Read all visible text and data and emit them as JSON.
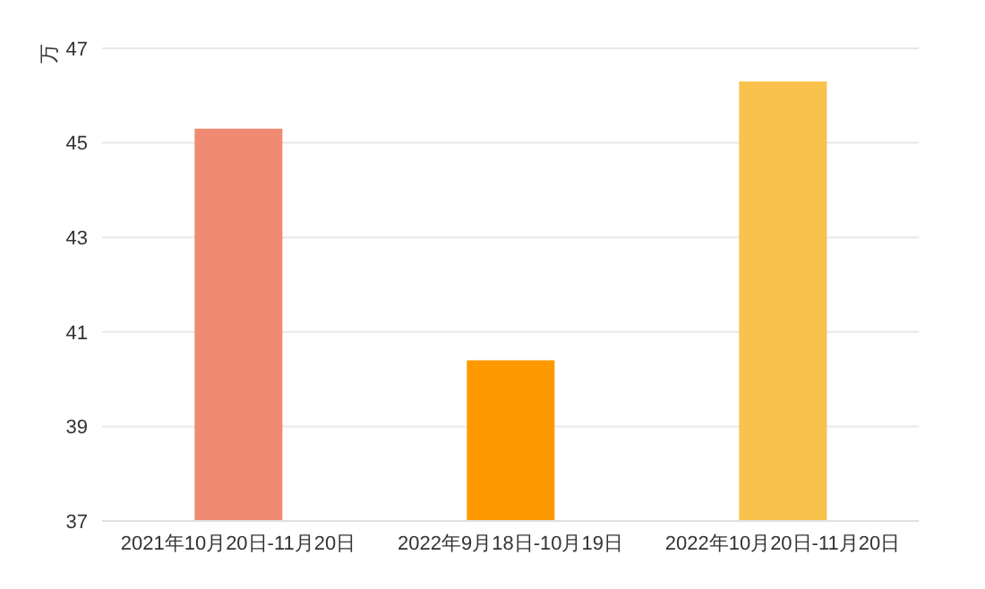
{
  "chart_data": {
    "type": "bar",
    "ylabel": "万",
    "categories": [
      "2021年10月20日-11月20日",
      "2022年9月18日-10月19日",
      "2022年10月20日-11月20日"
    ],
    "values": [
      45.3,
      40.4,
      46.3
    ],
    "colors": [
      "#f08a72",
      "#ff9900",
      "#f9c24c"
    ],
    "ylim": [
      37,
      47
    ],
    "yticks": [
      37,
      39,
      41,
      43,
      45,
      47
    ],
    "grid": "y"
  }
}
